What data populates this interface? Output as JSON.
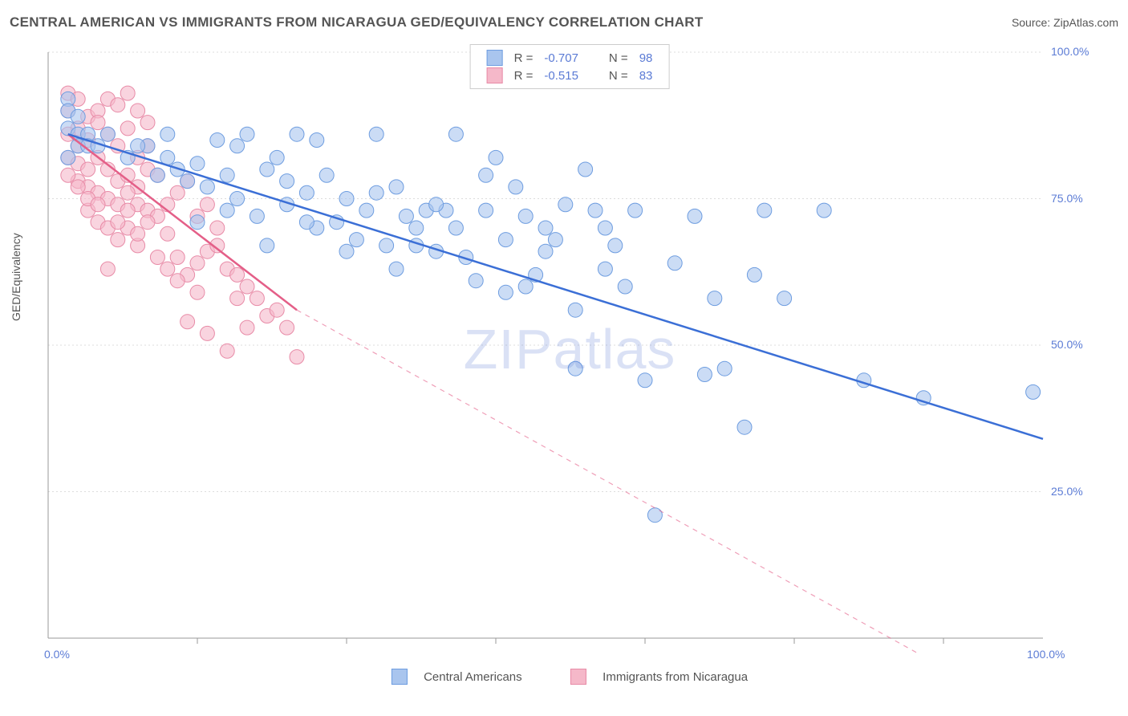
{
  "title": "CENTRAL AMERICAN VS IMMIGRANTS FROM NICARAGUA GED/EQUIVALENCY CORRELATION CHART",
  "source": "Source: ZipAtlas.com",
  "watermark": "ZIPatlas",
  "y_axis_label": "GED/Equivalency",
  "chart": {
    "type": "scatter-with-regression",
    "background_color": "#ffffff",
    "grid_color": "#dddddd",
    "axis_color": "#999999",
    "tick_label_color": "#5b7bd5",
    "xlim": [
      0,
      100
    ],
    "ylim": [
      0,
      100
    ],
    "x_ticks": [
      0,
      100
    ],
    "x_tick_labels": [
      "0.0%",
      "100.0%"
    ],
    "y_ticks": [
      25,
      50,
      75,
      100
    ],
    "y_tick_labels": [
      "25.0%",
      "50.0%",
      "75.0%",
      "100.0%"
    ],
    "x_minor_ticks": [
      15,
      30,
      45,
      60,
      75,
      90
    ],
    "tick_fontsize": 14,
    "series": [
      {
        "name": "Central Americans",
        "color_fill": "#a9c5ee",
        "color_stroke": "#6e9de0",
        "line_color": "#3b6fd6",
        "marker_radius": 9,
        "marker_opacity": 0.6,
        "line_width": 2.5,
        "R": "-0.707",
        "N": "98",
        "regression": {
          "x1": 2,
          "y1": 86,
          "x2": 100,
          "y2": 34,
          "dash_after_x": 100
        },
        "points": [
          [
            2,
            92
          ],
          [
            2,
            90
          ],
          [
            3,
            89
          ],
          [
            2,
            87
          ],
          [
            3,
            86
          ],
          [
            4,
            86
          ],
          [
            3,
            84
          ],
          [
            4,
            84
          ],
          [
            5,
            84
          ],
          [
            2,
            82
          ],
          [
            10,
            84
          ],
          [
            12,
            82
          ],
          [
            15,
            81
          ],
          [
            14,
            78
          ],
          [
            16,
            77
          ],
          [
            13,
            80
          ],
          [
            18,
            79
          ],
          [
            19,
            84
          ],
          [
            20,
            86
          ],
          [
            19,
            75
          ],
          [
            22,
            80
          ],
          [
            25,
            86
          ],
          [
            24,
            78
          ],
          [
            21,
            72
          ],
          [
            26,
            76
          ],
          [
            28,
            79
          ],
          [
            30,
            75
          ],
          [
            32,
            73
          ],
          [
            27,
            70
          ],
          [
            29,
            71
          ],
          [
            33,
            86
          ],
          [
            35,
            77
          ],
          [
            36,
            72
          ],
          [
            38,
            73
          ],
          [
            40,
            73
          ],
          [
            31,
            68
          ],
          [
            34,
            67
          ],
          [
            37,
            70
          ],
          [
            39,
            66
          ],
          [
            42,
            65
          ],
          [
            41,
            86
          ],
          [
            44,
            73
          ],
          [
            45,
            82
          ],
          [
            47,
            77
          ],
          [
            48,
            72
          ],
          [
            50,
            70
          ],
          [
            51,
            68
          ],
          [
            43,
            61
          ],
          [
            46,
            59
          ],
          [
            49,
            62
          ],
          [
            52,
            74
          ],
          [
            54,
            80
          ],
          [
            55,
            73
          ],
          [
            57,
            67
          ],
          [
            58,
            60
          ],
          [
            60,
            44
          ],
          [
            61,
            21
          ],
          [
            53,
            56
          ],
          [
            56,
            70
          ],
          [
            59,
            73
          ],
          [
            63,
            64
          ],
          [
            65,
            72
          ],
          [
            66,
            45
          ],
          [
            67,
            58
          ],
          [
            68,
            46
          ],
          [
            70,
            36
          ],
          [
            72,
            73
          ],
          [
            74,
            58
          ],
          [
            71,
            62
          ],
          [
            78,
            73
          ],
          [
            82,
            44
          ],
          [
            88,
            41
          ],
          [
            99,
            42
          ],
          [
            15,
            71
          ],
          [
            18,
            73
          ],
          [
            22,
            67
          ],
          [
            24,
            74
          ],
          [
            27,
            85
          ],
          [
            30,
            66
          ],
          [
            33,
            76
          ],
          [
            35,
            63
          ],
          [
            37,
            67
          ],
          [
            39,
            74
          ],
          [
            41,
            70
          ],
          [
            44,
            79
          ],
          [
            46,
            68
          ],
          [
            48,
            60
          ],
          [
            50,
            66
          ],
          [
            53,
            46
          ],
          [
            56,
            63
          ],
          [
            6,
            86
          ],
          [
            8,
            82
          ],
          [
            9,
            84
          ],
          [
            11,
            79
          ],
          [
            12,
            86
          ],
          [
            17,
            85
          ],
          [
            23,
            82
          ],
          [
            26,
            71
          ]
        ]
      },
      {
        "name": "Immigrants from Nicaragua",
        "color_fill": "#f5b8c9",
        "color_stroke": "#e88ba7",
        "line_color": "#e45f88",
        "marker_radius": 9,
        "marker_opacity": 0.6,
        "line_width": 2.5,
        "R": "-0.515",
        "N": "83",
        "regression": {
          "x1": 2,
          "y1": 86,
          "x2": 25,
          "y2": 56,
          "dash_after_x": 25,
          "dash_x2": 90,
          "dash_y2": -5
        },
        "points": [
          [
            2,
            93
          ],
          [
            3,
            92
          ],
          [
            2,
            90
          ],
          [
            4,
            89
          ],
          [
            3,
            87
          ],
          [
            5,
            90
          ],
          [
            2,
            86
          ],
          [
            4,
            85
          ],
          [
            3,
            84
          ],
          [
            5,
            88
          ],
          [
            6,
            92
          ],
          [
            6,
            86
          ],
          [
            7,
            91
          ],
          [
            7,
            84
          ],
          [
            8,
            93
          ],
          [
            8,
            87
          ],
          [
            9,
            90
          ],
          [
            9,
            82
          ],
          [
            10,
            88
          ],
          [
            10,
            84
          ],
          [
            2,
            82
          ],
          [
            3,
            81
          ],
          [
            4,
            80
          ],
          [
            5,
            82
          ],
          [
            6,
            80
          ],
          [
            7,
            78
          ],
          [
            8,
            79
          ],
          [
            9,
            77
          ],
          [
            10,
            80
          ],
          [
            11,
            79
          ],
          [
            3,
            78
          ],
          [
            4,
            77
          ],
          [
            5,
            76
          ],
          [
            6,
            75
          ],
          [
            7,
            74
          ],
          [
            8,
            76
          ],
          [
            9,
            74
          ],
          [
            10,
            73
          ],
          [
            11,
            72
          ],
          [
            12,
            74
          ],
          [
            4,
            73
          ],
          [
            5,
            71
          ],
          [
            6,
            70
          ],
          [
            7,
            68
          ],
          [
            8,
            70
          ],
          [
            6,
            63
          ],
          [
            9,
            67
          ],
          [
            13,
            76
          ],
          [
            14,
            78
          ],
          [
            15,
            72
          ],
          [
            2,
            79
          ],
          [
            3,
            77
          ],
          [
            4,
            75
          ],
          [
            5,
            74
          ],
          [
            7,
            71
          ],
          [
            8,
            73
          ],
          [
            9,
            69
          ],
          [
            10,
            71
          ],
          [
            16,
            74
          ],
          [
            12,
            69
          ],
          [
            13,
            65
          ],
          [
            14,
            62
          ],
          [
            15,
            59
          ],
          [
            16,
            66
          ],
          [
            17,
            70
          ],
          [
            18,
            63
          ],
          [
            19,
            58
          ],
          [
            20,
            60
          ],
          [
            22,
            55
          ],
          [
            24,
            53
          ],
          [
            25,
            48
          ],
          [
            14,
            54
          ],
          [
            16,
            52
          ],
          [
            18,
            49
          ],
          [
            11,
            65
          ],
          [
            12,
            63
          ],
          [
            13,
            61
          ],
          [
            15,
            64
          ],
          [
            17,
            67
          ],
          [
            19,
            62
          ],
          [
            21,
            58
          ],
          [
            23,
            56
          ],
          [
            20,
            53
          ]
        ]
      }
    ]
  },
  "legend_top": {
    "label_R": "R =",
    "label_N": "N =",
    "label_color": "#555555",
    "value_color": "#5b7bd5"
  },
  "legend_bottom_labels": [
    "Central Americans",
    "Immigrants from Nicaragua"
  ]
}
